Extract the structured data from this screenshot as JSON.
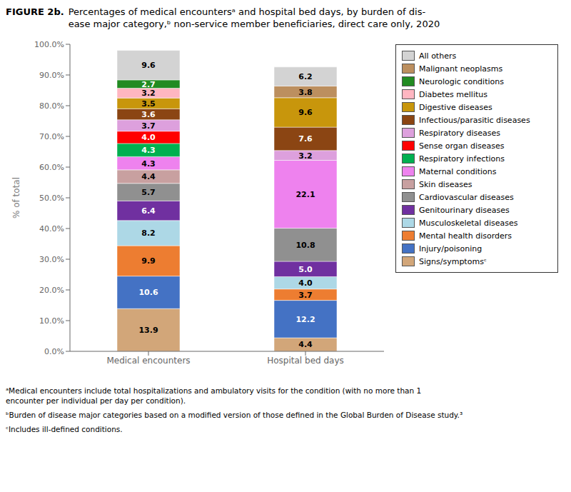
{
  "chart_data": {
    "type": "bar",
    "title": "FIGURE 2b.",
    "subtitle": "Percentages of medical encountersᵃ and hospital bed days, by burden of dis-\nease major category,ᵇ non-service member beneficiaries, direct care only, 2020",
    "y_label": "% of total",
    "categories": [
      "Medical encounters",
      "Hospital bed days"
    ],
    "stacked": true,
    "data_labels": true,
    "grid": false,
    "legend": "right",
    "ylim": [
      0,
      100
    ],
    "yticks": [
      {
        "value": 0,
        "label": "0.0%"
      },
      {
        "value": 10,
        "label": "10.0%"
      },
      {
        "value": 20,
        "label": "20.0%"
      },
      {
        "value": 30,
        "label": "30.0%"
      },
      {
        "value": 40,
        "label": "40.0%"
      },
      {
        "value": 50,
        "label": "50.0%"
      },
      {
        "value": 60,
        "label": "60.0%"
      },
      {
        "value": 70,
        "label": "70.0%"
      },
      {
        "value": 80,
        "label": "80.0%"
      },
      {
        "value": 90,
        "label": "90.0%"
      },
      {
        "value": 100,
        "label": "100.0%"
      }
    ],
    "series": [
      {
        "name": "Signs/symptomsᶜ",
        "color": "#d2a679",
        "values": [
          13.9,
          4.4
        ],
        "value_labels": [
          "13.9",
          "4.4"
        ]
      },
      {
        "name": "Injury/poisoning",
        "color": "#4472c4",
        "values": [
          10.6,
          12.2
        ],
        "value_labels": [
          "10.6",
          "12.2"
        ]
      },
      {
        "name": "Mental health disorders",
        "color": "#ed7d31",
        "values": [
          9.9,
          3.7
        ],
        "value_labels": [
          "9.9",
          "3.7"
        ]
      },
      {
        "name": "Musculoskeletal diseases",
        "color": "#add8e6",
        "values": [
          8.2,
          4.0
        ],
        "value_labels": [
          "8.2",
          "4.0"
        ]
      },
      {
        "name": "Genitourinary diseases",
        "color": "#7030a0",
        "values": [
          6.4,
          5.0
        ],
        "value_labels": [
          "6.4",
          "5.0"
        ]
      },
      {
        "name": "Cardiovascular diseases",
        "color": "#909090",
        "values": [
          5.7,
          10.8
        ],
        "value_labels": [
          "5.7",
          "10.8"
        ]
      },
      {
        "name": "Skin diseases",
        "color": "#c8a0a0",
        "values": [
          4.4,
          0.0
        ],
        "value_labels": [
          "4.4",
          null
        ]
      },
      {
        "name": "Maternal conditions",
        "color": "#ee82ee",
        "values": [
          4.3,
          22.1
        ],
        "value_labels": [
          "4.3",
          "22.1"
        ]
      },
      {
        "name": "Respiratory infections",
        "color": "#00b050",
        "values": [
          4.3,
          0.0
        ],
        "value_labels": [
          "4.3",
          null
        ]
      },
      {
        "name": "Sense organ diseases",
        "color": "#ff0000",
        "values": [
          4.0,
          0.0
        ],
        "value_labels": [
          "4.0",
          null
        ]
      },
      {
        "name": "Respiratory diseases",
        "color": "#dda0dd",
        "values": [
          3.7,
          3.2
        ],
        "value_labels": [
          "3.7",
          "3.2"
        ]
      },
      {
        "name": "Infectious/parasitic diseases",
        "color": "#8b4513",
        "values": [
          3.6,
          7.6
        ],
        "value_labels": [
          "3.6",
          "7.6"
        ]
      },
      {
        "name": "Digestive diseases",
        "color": "#c8960c",
        "values": [
          3.5,
          9.6
        ],
        "value_labels": [
          "3.5",
          "9.6"
        ]
      },
      {
        "name": "Diabetes mellitus",
        "color": "#ffb6c1",
        "values": [
          3.2,
          0.0
        ],
        "value_labels": [
          "3.2",
          null
        ]
      },
      {
        "name": "Neurologic conditions",
        "color": "#228b22",
        "values": [
          2.7,
          0.0
        ],
        "value_labels": [
          "2.7",
          null
        ]
      },
      {
        "name": "Malignant neoplasms",
        "color": "#bc8f5f",
        "values": [
          0.0,
          3.8
        ],
        "value_labels": [
          null,
          "3.8"
        ]
      },
      {
        "name": "All others",
        "color": "#d3d3d3",
        "values": [
          9.6,
          6.2
        ],
        "value_labels": [
          "9.6",
          "6.2"
        ]
      }
    ],
    "annotations": [
      "ᵃMedical encounters include total hospitalizations and ambulatory visits for the condition (with no more than 1\nencounter per individual per day per condition).",
      "ᵇBurden of disease major categories based on a modified version of those defined in the Global Burden of Disease study.³",
      "ᶜIncludes ill-defined conditions."
    ]
  }
}
